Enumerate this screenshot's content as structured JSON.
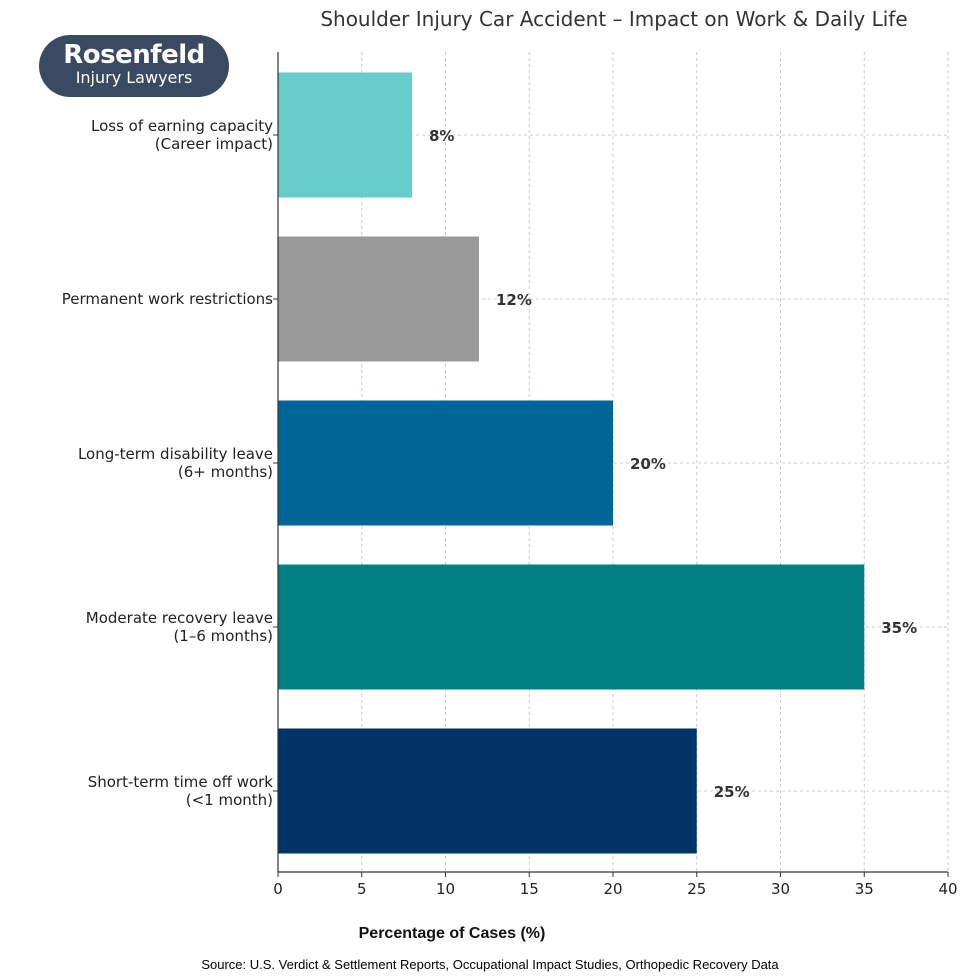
{
  "logo": {
    "line1": "Rosenfeld",
    "line2": "Injury Lawyers",
    "color": "#3a4a60"
  },
  "source": "Source: U.S. Verdict & Settlement Reports, Occupational Impact Studies, Orthopedic Recovery Data",
  "chart_data": {
    "type": "bar",
    "orientation": "horizontal",
    "title": "Shoulder Injury Car Accident – Impact on Work & Daily Life",
    "xlabel": "Percentage of Cases (%)",
    "ylabel": "",
    "xlim": [
      0,
      40
    ],
    "xticks": [
      0,
      5,
      10,
      15,
      20,
      25,
      30,
      35,
      40
    ],
    "grid": true,
    "categories": [
      "Loss of earning capacity\n(Career impact)",
      "Permanent work restrictions",
      "Long-term disability leave\n(6+ months)",
      "Moderate recovery leave\n(1–6 months)",
      "Short-term time off work\n(<1 month)"
    ],
    "values": [
      8,
      12,
      20,
      35,
      25
    ],
    "data_labels": [
      "8%",
      "12%",
      "20%",
      "35%",
      "25%"
    ],
    "colors": [
      "#66cdca",
      "#999999",
      "#006699",
      "#008080",
      "#003366"
    ]
  }
}
